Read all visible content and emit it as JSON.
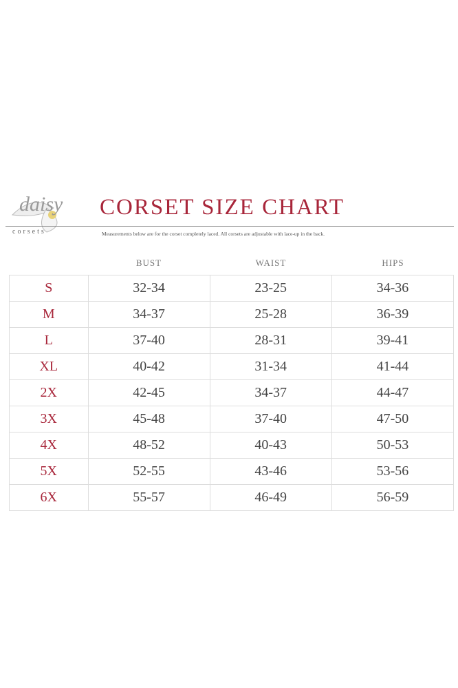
{
  "logo": {
    "word": "daisy",
    "sub": "corsets"
  },
  "title": "CORSET SIZE CHART",
  "note": "Measurements below are for the corset completely laced.  All corsets are adjustable with lace-up in the back.",
  "columns": [
    "BUST",
    "WAIST",
    "HIPS"
  ],
  "rows": [
    {
      "size": "S",
      "bust": "32-34",
      "waist": "23-25",
      "hips": "34-36"
    },
    {
      "size": "M",
      "bust": "34-37",
      "waist": "25-28",
      "hips": "36-39"
    },
    {
      "size": "L",
      "bust": "37-40",
      "waist": "28-31",
      "hips": "39-41"
    },
    {
      "size": "XL",
      "bust": "40-42",
      "waist": "31-34",
      "hips": "41-44"
    },
    {
      "size": "2X",
      "bust": "42-45",
      "waist": "34-37",
      "hips": "44-47"
    },
    {
      "size": "3X",
      "bust": "45-48",
      "waist": "37-40",
      "hips": "47-50"
    },
    {
      "size": "4X",
      "bust": "48-52",
      "waist": "40-43",
      "hips": "50-53"
    },
    {
      "size": "5X",
      "bust": "52-55",
      "waist": "43-46",
      "hips": "53-56"
    },
    {
      "size": "6X",
      "bust": "55-57",
      "waist": "46-49",
      "hips": "56-59"
    }
  ],
  "colors": {
    "accent": "#a8263a",
    "text": "#444444"
  }
}
